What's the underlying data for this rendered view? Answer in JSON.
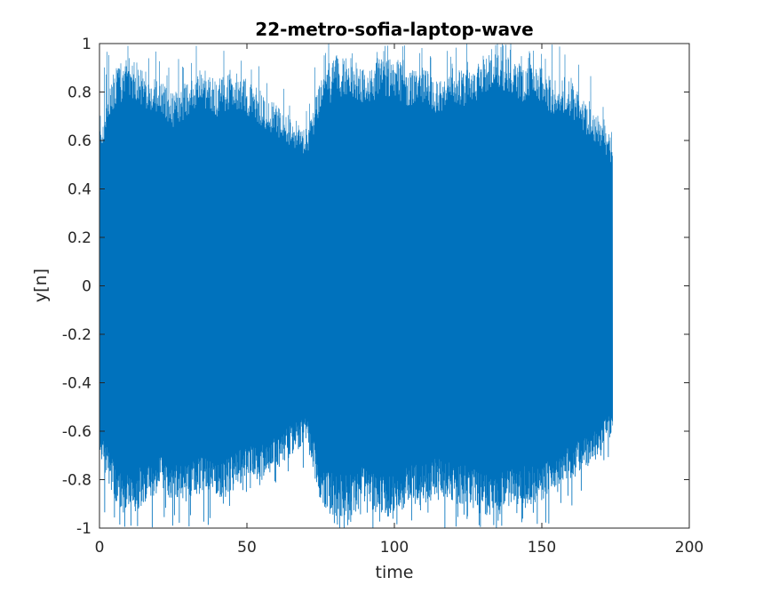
{
  "chart_data": {
    "type": "line",
    "title": "22-metro-sofia-laptop-wave",
    "xlabel": "time",
    "ylabel": "y[n]",
    "xlim": [
      0,
      200
    ],
    "ylim": [
      -1,
      1
    ],
    "xticks": [
      0,
      50,
      100,
      150,
      200
    ],
    "xtick_labels": [
      "0",
      "50",
      "100",
      "150",
      "200"
    ],
    "yticks": [
      -1,
      -0.8,
      -0.6,
      -0.4,
      -0.2,
      0,
      0.2,
      0.4,
      0.6,
      0.8,
      1
    ],
    "ytick_labels": [
      "-1",
      "-0.8",
      "-0.6",
      "-0.4",
      "-0.2",
      "0",
      "0.2",
      "0.4",
      "0.6",
      "0.8",
      "1"
    ],
    "grid": false,
    "series": [
      {
        "color": "#0072BD",
        "x_start": 0,
        "x_end": 174,
        "envelope": {
          "x": [
            0,
            5,
            10,
            15,
            20,
            25,
            30,
            35,
            40,
            45,
            50,
            55,
            60,
            65,
            70,
            75,
            80,
            85,
            90,
            95,
            100,
            105,
            110,
            115,
            120,
            125,
            130,
            135,
            140,
            145,
            150,
            155,
            160,
            165,
            170,
            174
          ],
          "upper": [
            0.65,
            0.9,
            0.95,
            0.9,
            0.85,
            0.8,
            0.85,
            0.9,
            0.85,
            0.9,
            0.85,
            0.8,
            0.75,
            0.7,
            0.65,
            0.85,
            0.95,
            0.95,
            0.9,
            0.95,
            0.95,
            0.9,
            0.9,
            0.85,
            0.9,
            0.9,
            0.95,
            1.0,
            0.95,
            0.9,
            0.9,
            0.85,
            0.85,
            0.75,
            0.7,
            0.6
          ],
          "lower": [
            -0.7,
            -0.9,
            -0.95,
            -0.9,
            -0.85,
            -0.9,
            -0.9,
            -0.85,
            -0.9,
            -0.85,
            -0.8,
            -0.8,
            -0.75,
            -0.7,
            -0.65,
            -0.9,
            -0.95,
            -0.95,
            -0.9,
            -0.95,
            -0.95,
            -0.9,
            -0.9,
            -0.85,
            -0.9,
            -0.9,
            -0.95,
            -0.95,
            -0.9,
            -0.9,
            -0.9,
            -0.85,
            -0.8,
            -0.75,
            -0.7,
            -0.6
          ],
          "peaks_upper": [
            1,
            1,
            1,
            1,
            1,
            1,
            1,
            1,
            1,
            1,
            0.95,
            0.9,
            0.85,
            0.8,
            0.75,
            1,
            1,
            1,
            1,
            1,
            1,
            1,
            1,
            1,
            1,
            1,
            1,
            1,
            1,
            1,
            1,
            1,
            0.95,
            0.95,
            0.85,
            0.62
          ],
          "peaks_lower": [
            -1,
            -1,
            -1,
            -1,
            -1,
            -1,
            -1,
            -1,
            -1,
            -1,
            -0.95,
            -0.9,
            -0.85,
            -0.8,
            -0.75,
            -1,
            -1,
            -1,
            -1,
            -1,
            -1,
            -1,
            -1,
            -1,
            -1,
            -1,
            -1,
            -1,
            -1,
            -1,
            -1,
            -1,
            -0.95,
            -0.95,
            -0.85,
            -0.62
          ]
        }
      }
    ]
  }
}
